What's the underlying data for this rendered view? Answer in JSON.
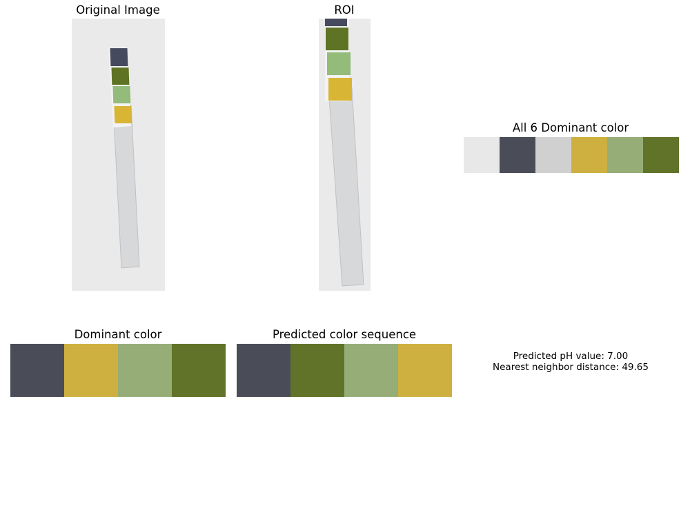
{
  "panels": {
    "original": {
      "title": "Original Image"
    },
    "roi": {
      "title": "ROI"
    },
    "all_colors": {
      "title": "All 6 Dominant color",
      "colors": [
        "#e8e8e8",
        "#4a4c58",
        "#d0d0d0",
        "#cdb040",
        "#96ad78",
        "#617328"
      ]
    },
    "dominant": {
      "title": "Dominant color",
      "colors": [
        "#4a4c58",
        "#cdb040",
        "#96ad78",
        "#617328"
      ]
    },
    "predicted": {
      "title": "Predicted color sequence",
      "colors": [
        "#4a4c58",
        "#617328",
        "#96ad78",
        "#cdb040"
      ]
    }
  },
  "result": {
    "ph_line": "Predicted pH value: 7.00",
    "distance_line": "Nearest neighbor distance: 49.65"
  },
  "strip_colors": {
    "pad1": "#454a5e",
    "pad2": "#5e7324",
    "pad3": "#93bb7a",
    "pad4": "#d9b535",
    "body": "#d6d8da"
  }
}
